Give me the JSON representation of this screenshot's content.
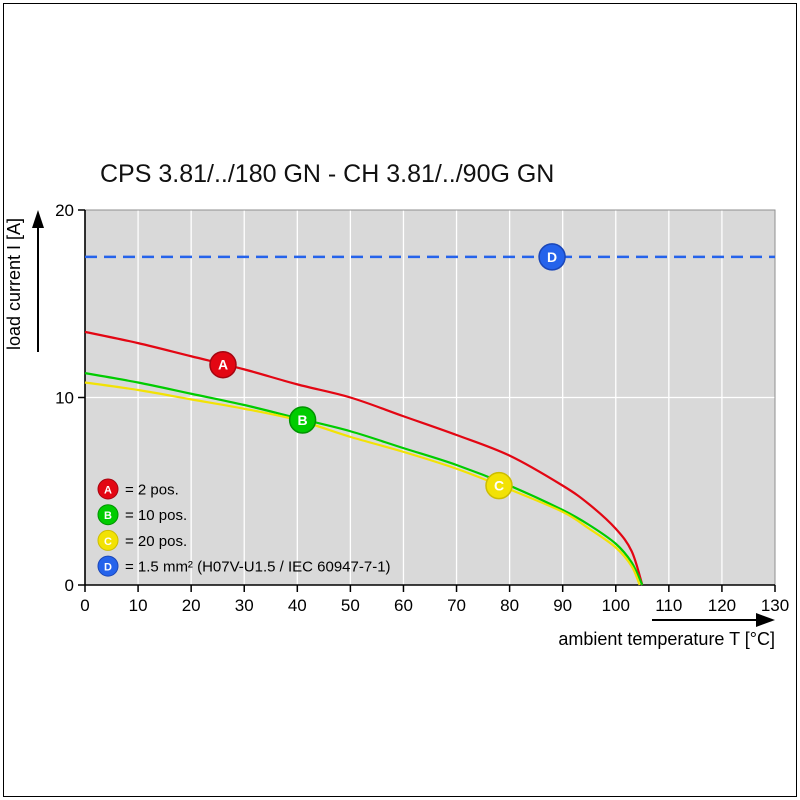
{
  "chart_data": {
    "type": "line",
    "title": "CPS 3.81/../180 GN - CH 3.81/../90G GN",
    "xlabel": "ambient temperature T [°C]",
    "ylabel": "load current I [A]",
    "xlim": [
      0,
      130
    ],
    "ylim": [
      0,
      20
    ],
    "x_ticks": [
      0,
      10,
      20,
      30,
      40,
      50,
      60,
      70,
      80,
      90,
      100,
      110,
      120,
      130
    ],
    "y_ticks": [
      0,
      10,
      20
    ],
    "grid": true,
    "legend_position": "lower-left-inside",
    "plot_bg": "#d9d9d9",
    "gridline_color": "#ffffff",
    "axis_color": "#000000",
    "series": [
      {
        "name": "A",
        "legend_label": "= 2 pos.",
        "color": "#e30613",
        "marker_stroke": "#a50410",
        "style": "solid",
        "points": [
          [
            0,
            13.5
          ],
          [
            10,
            12.9
          ],
          [
            20,
            12.2
          ],
          [
            30,
            11.5
          ],
          [
            40,
            10.7
          ],
          [
            50,
            10.0
          ],
          [
            60,
            9.0
          ],
          [
            70,
            8.0
          ],
          [
            80,
            6.9
          ],
          [
            90,
            5.3
          ],
          [
            95,
            4.3
          ],
          [
            100,
            3.0
          ],
          [
            103,
            1.8
          ],
          [
            105,
            0
          ]
        ],
        "marker": {
          "x": 26,
          "y": 11.75
        }
      },
      {
        "name": "B",
        "legend_label": "= 10 pos.",
        "color": "#00cc00",
        "marker_stroke": "#009400",
        "style": "solid",
        "points": [
          [
            0,
            11.3
          ],
          [
            10,
            10.8
          ],
          [
            20,
            10.2
          ],
          [
            30,
            9.6
          ],
          [
            40,
            8.9
          ],
          [
            50,
            8.2
          ],
          [
            60,
            7.3
          ],
          [
            70,
            6.4
          ],
          [
            80,
            5.3
          ],
          [
            90,
            4.0
          ],
          [
            95,
            3.2
          ],
          [
            100,
            2.2
          ],
          [
            103,
            1.2
          ],
          [
            105,
            0
          ]
        ],
        "marker": {
          "x": 41,
          "y": 8.8
        }
      },
      {
        "name": "C",
        "legend_label": "= 20 pos.",
        "color": "#f2e205",
        "marker_stroke": "#cdbd00",
        "style": "solid",
        "points": [
          [
            0,
            10.8
          ],
          [
            10,
            10.4
          ],
          [
            20,
            9.9
          ],
          [
            30,
            9.4
          ],
          [
            40,
            8.8
          ],
          [
            50,
            7.9
          ],
          [
            60,
            7.1
          ],
          [
            70,
            6.2
          ],
          [
            80,
            5.1
          ],
          [
            90,
            3.9
          ],
          [
            95,
            3.0
          ],
          [
            100,
            2.0
          ],
          [
            103,
            1.0
          ],
          [
            104.5,
            0
          ]
        ],
        "marker": {
          "x": 78,
          "y": 5.3
        }
      },
      {
        "name": "D",
        "legend_label": "= 1.5 mm² (H07V-U1.5 / IEC 60947-7-1)",
        "color": "#2563eb",
        "marker_stroke": "#1a46b8",
        "style": "dashed",
        "points": [
          [
            0,
            17.5
          ],
          [
            130,
            17.5
          ]
        ],
        "marker": {
          "x": 88,
          "y": 17.5
        }
      }
    ]
  }
}
